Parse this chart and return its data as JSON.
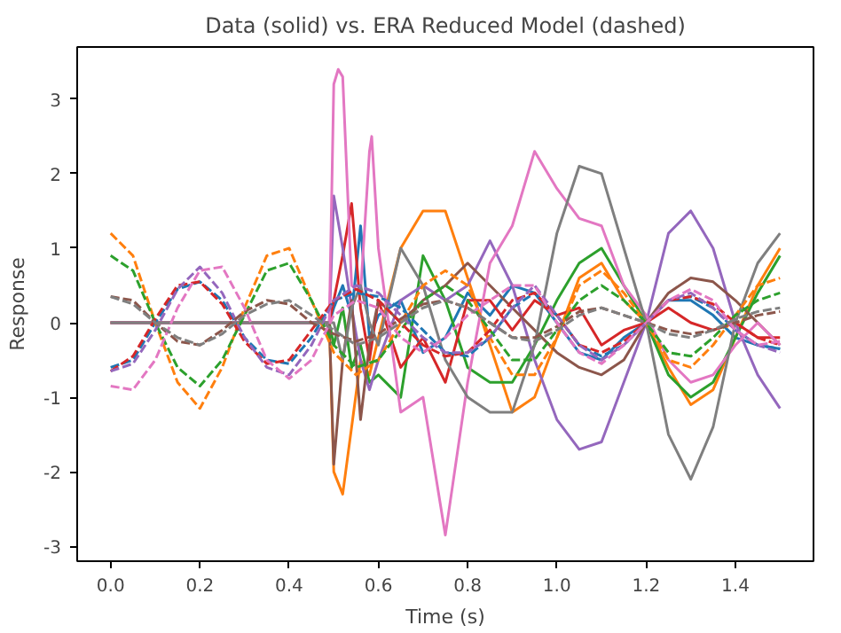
{
  "chart_data": {
    "type": "line",
    "title": "Data (solid) vs. ERA Reduced Model (dashed)",
    "xlabel": "Time (s)",
    "ylabel": "Response",
    "xlim": [
      -0.075,
      1.575
    ],
    "ylim": [
      -3.2,
      3.7
    ],
    "xticks": [
      {
        "value": 0,
        "label": "0.0"
      },
      {
        "value": 0.2,
        "label": "0.2"
      },
      {
        "value": 0.4,
        "label": "0.4"
      },
      {
        "value": 0.6,
        "label": "0.6"
      },
      {
        "value": 0.8,
        "label": "0.8"
      },
      {
        "value": 1.0,
        "label": "1.0"
      },
      {
        "value": 1.2,
        "label": "1.2"
      },
      {
        "value": 1.4,
        "label": "1.4"
      }
    ],
    "yticks": [
      -3,
      -2,
      -1,
      0,
      1,
      2,
      3
    ],
    "series": [
      {
        "color": "#1f77b4",
        "line_style": "solid",
        "x": [
          0,
          0.49,
          0.5,
          0.52,
          0.54,
          0.56,
          0.58,
          0.6,
          0.65,
          0.7,
          0.75,
          0.8,
          0.85,
          0.9,
          0.95,
          1.0,
          1.05,
          1.1,
          1.15,
          1.2,
          1.25,
          1.3,
          1.35,
          1.4,
          1.45,
          1.5
        ],
        "values": [
          0,
          0,
          0.2,
          0.5,
          0.1,
          1.3,
          -0.2,
          0.1,
          0.3,
          -0.4,
          -0.2,
          0.4,
          0.1,
          0.5,
          0.4,
          0.0,
          -0.4,
          -0.5,
          -0.2,
          0.0,
          0.3,
          0.3,
          0.1,
          -0.2,
          -0.3,
          -0.35
        ]
      },
      {
        "color": "#ff7f0e",
        "line_style": "solid",
        "x": [
          0,
          0.49,
          0.5,
          0.52,
          0.54,
          0.56,
          0.58,
          0.6,
          0.65,
          0.7,
          0.75,
          0.8,
          0.85,
          0.9,
          0.95,
          1.0,
          1.05,
          1.1,
          1.15,
          1.2,
          1.25,
          1.3,
          1.35,
          1.4,
          1.45,
          1.5
        ],
        "values": [
          0,
          0,
          -2.0,
          -2.3,
          -1.4,
          -0.5,
          -0.7,
          -0.2,
          1.0,
          1.5,
          1.5,
          0.6,
          -0.3,
          -1.2,
          -1.0,
          -0.2,
          0.6,
          0.8,
          0.3,
          0.0,
          -0.6,
          -1.1,
          -0.9,
          -0.2,
          0.5,
          1.0
        ]
      },
      {
        "color": "#2ca02c",
        "line_style": "solid",
        "x": [
          0,
          0.49,
          0.5,
          0.52,
          0.54,
          0.56,
          0.58,
          0.6,
          0.65,
          0.7,
          0.75,
          0.8,
          0.85,
          0.9,
          0.95,
          1.0,
          1.05,
          1.1,
          1.15,
          1.2,
          1.25,
          1.3,
          1.35,
          1.4,
          1.45,
          1.5
        ],
        "values": [
          0,
          0,
          -0.3,
          0.2,
          -0.6,
          -0.3,
          -0.8,
          -0.7,
          -1.0,
          0.9,
          0.3,
          -0.6,
          -0.8,
          -0.8,
          -0.3,
          0.3,
          0.8,
          1.0,
          0.5,
          0.0,
          -0.7,
          -1.0,
          -0.8,
          -0.2,
          0.4,
          0.9
        ]
      },
      {
        "color": "#d62728",
        "line_style": "solid",
        "x": [
          0,
          0.49,
          0.5,
          0.52,
          0.54,
          0.56,
          0.58,
          0.6,
          0.65,
          0.7,
          0.75,
          0.8,
          0.85,
          0.9,
          0.95,
          1.0,
          1.05,
          1.1,
          1.15,
          1.2,
          1.25,
          1.3,
          1.35,
          1.4,
          1.45,
          1.5
        ],
        "values": [
          0,
          0,
          0.3,
          0.9,
          1.6,
          0.2,
          -0.5,
          0.3,
          -0.6,
          -0.2,
          -0.8,
          0.3,
          0.3,
          -0.1,
          0.3,
          0.1,
          0.2,
          -0.3,
          -0.1,
          0.0,
          0.2,
          0.0,
          -0.1,
          0.0,
          -0.2,
          -0.2
        ]
      },
      {
        "color": "#9467bd",
        "line_style": "solid",
        "x": [
          0,
          0.49,
          0.5,
          0.52,
          0.54,
          0.56,
          0.58,
          0.6,
          0.65,
          0.7,
          0.75,
          0.8,
          0.85,
          0.9,
          0.95,
          1.0,
          1.05,
          1.1,
          1.15,
          1.2,
          1.25,
          1.3,
          1.35,
          1.4,
          1.45,
          1.5
        ],
        "values": [
          0,
          0,
          1.7,
          1.0,
          0.2,
          -0.5,
          -0.9,
          -0.5,
          0.3,
          0.5,
          0.3,
          0.5,
          1.1,
          0.5,
          -0.5,
          -1.3,
          -1.7,
          -1.6,
          -0.8,
          0.0,
          1.2,
          1.5,
          1.0,
          0.0,
          -0.7,
          -1.15
        ]
      },
      {
        "color": "#8c564b",
        "line_style": "solid",
        "x": [
          0,
          0.49,
          0.5,
          0.52,
          0.54,
          0.56,
          0.58,
          0.6,
          0.65,
          0.7,
          0.75,
          0.8,
          0.85,
          0.9,
          0.95,
          1.0,
          1.05,
          1.1,
          1.15,
          1.2,
          1.25,
          1.3,
          1.35,
          1.4,
          1.45,
          1.5
        ],
        "values": [
          0,
          0,
          -1.9,
          -0.5,
          0.3,
          -1.3,
          -0.3,
          0.3,
          0.0,
          0.3,
          0.5,
          0.8,
          0.5,
          0.2,
          -0.1,
          -0.4,
          -0.6,
          -0.7,
          -0.5,
          0.0,
          0.4,
          0.6,
          0.55,
          0.3,
          0.0,
          -0.3
        ]
      },
      {
        "color": "#e377c2",
        "line_style": "solid",
        "x": [
          0,
          0.49,
          0.5,
          0.51,
          0.52,
          0.54,
          0.56,
          0.58,
          0.585,
          0.6,
          0.65,
          0.7,
          0.75,
          0.8,
          0.85,
          0.9,
          0.95,
          1.0,
          1.05,
          1.1,
          1.15,
          1.2,
          1.25,
          1.3,
          1.35,
          1.4,
          1.45,
          1.5
        ],
        "values": [
          0,
          0,
          3.2,
          3.4,
          3.3,
          0.5,
          0.4,
          2.3,
          2.5,
          1.0,
          -1.2,
          -1.0,
          -2.85,
          -0.8,
          0.8,
          1.3,
          2.3,
          1.8,
          1.4,
          1.3,
          0.5,
          0.1,
          -0.5,
          -0.8,
          -0.7,
          -0.3,
          0.0,
          -0.3
        ]
      },
      {
        "color": "#7f7f7f",
        "line_style": "solid",
        "x": [
          0,
          0.49,
          0.5,
          0.52,
          0.54,
          0.56,
          0.58,
          0.6,
          0.65,
          0.7,
          0.75,
          0.8,
          0.85,
          0.9,
          0.95,
          1.0,
          1.05,
          1.1,
          1.15,
          1.2,
          1.25,
          1.3,
          1.35,
          1.4,
          1.45,
          1.5
        ],
        "values": [
          0,
          0,
          0.0,
          -0.5,
          0.2,
          0.5,
          0.0,
          -0.3,
          1.0,
          0.5,
          -0.5,
          -1.0,
          -1.2,
          -1.2,
          -0.3,
          1.2,
          2.1,
          2.0,
          1.0,
          0.0,
          -1.5,
          -2.1,
          -1.4,
          0.0,
          0.8,
          1.2
        ]
      },
      {
        "color": "#1f77b4",
        "line_style": "dashed",
        "values": [
          -0.6,
          -0.5,
          0.0,
          0.45,
          0.55,
          0.3,
          -0.2,
          -0.5,
          -0.55,
          -0.2,
          0.3,
          0.4,
          0.35,
          0.2,
          -0.1,
          -0.4,
          -0.45,
          -0.2,
          0.2,
          0.4,
          0.1,
          -0.3,
          -0.45,
          -0.3,
          0.0,
          0.3,
          0.35,
          0.2,
          -0.1,
          -0.3,
          -0.35
        ]
      },
      {
        "color": "#ff7f0e",
        "line_style": "dashed",
        "values": [
          1.2,
          0.9,
          0.0,
          -0.8,
          -1.15,
          -0.6,
          0.2,
          0.9,
          1.0,
          0.3,
          -0.4,
          -0.7,
          -0.5,
          0.0,
          0.5,
          0.7,
          0.5,
          -0.2,
          -0.7,
          -0.7,
          -0.2,
          0.5,
          0.7,
          0.4,
          0.0,
          -0.5,
          -0.6,
          -0.3,
          0.1,
          0.5,
          0.6
        ]
      },
      {
        "color": "#2ca02c",
        "line_style": "dashed",
        "values": [
          0.9,
          0.7,
          0.0,
          -0.6,
          -0.85,
          -0.5,
          0.1,
          0.7,
          0.8,
          0.3,
          -0.3,
          -0.6,
          -0.5,
          -0.1,
          0.3,
          0.5,
          0.3,
          -0.1,
          -0.5,
          -0.5,
          -0.1,
          0.3,
          0.5,
          0.3,
          0.0,
          -0.4,
          -0.45,
          -0.2,
          0.1,
          0.3,
          0.4
        ]
      },
      {
        "color": "#d62728",
        "line_style": "dashed",
        "values": [
          -0.65,
          -0.45,
          0.05,
          0.5,
          0.55,
          0.25,
          -0.25,
          -0.55,
          -0.5,
          -0.1,
          0.3,
          0.45,
          0.3,
          0.0,
          -0.3,
          -0.45,
          -0.4,
          -0.1,
          0.3,
          0.4,
          0.1,
          -0.3,
          -0.4,
          -0.25,
          0.0,
          0.3,
          0.35,
          0.25,
          0.0,
          -0.2,
          -0.3
        ]
      },
      {
        "color": "#9467bd",
        "line_style": "dashed",
        "values": [
          -0.65,
          -0.55,
          -0.1,
          0.45,
          0.75,
          0.4,
          -0.2,
          -0.6,
          -0.7,
          -0.3,
          0.3,
          0.5,
          0.4,
          0.1,
          -0.2,
          -0.4,
          -0.4,
          -0.2,
          0.2,
          0.5,
          0.1,
          -0.3,
          -0.5,
          -0.3,
          0.0,
          0.3,
          0.4,
          0.2,
          -0.1,
          -0.3,
          -0.4
        ]
      },
      {
        "color": "#8c564b",
        "line_style": "dashed",
        "values": [
          0.35,
          0.3,
          0.0,
          -0.25,
          -0.3,
          -0.1,
          0.15,
          0.3,
          0.25,
          0.0,
          -0.15,
          -0.25,
          -0.15,
          0.05,
          0.25,
          0.3,
          0.2,
          0.0,
          -0.2,
          -0.2,
          -0.05,
          0.15,
          0.2,
          0.1,
          0.0,
          -0.1,
          -0.15,
          -0.1,
          0.0,
          0.1,
          0.15
        ]
      },
      {
        "color": "#e377c2",
        "line_style": "dashed",
        "values": [
          -0.85,
          -0.9,
          -0.5,
          0.2,
          0.7,
          0.75,
          0.2,
          -0.5,
          -0.75,
          -0.5,
          0.1,
          0.3,
          0.2,
          -0.2,
          -0.4,
          -0.2,
          0.1,
          0.3,
          0.5,
          0.5,
          0.0,
          -0.4,
          -0.55,
          -0.3,
          0.0,
          0.3,
          0.45,
          0.3,
          -0.1,
          -0.3,
          -0.25
        ]
      },
      {
        "color": "#7f7f7f",
        "line_style": "dashed",
        "values": [
          0.35,
          0.25,
          0.0,
          -0.2,
          -0.3,
          -0.15,
          0.1,
          0.25,
          0.3,
          0.1,
          -0.1,
          -0.3,
          -0.2,
          0.0,
          0.2,
          0.3,
          0.2,
          0.0,
          -0.2,
          -0.25,
          -0.1,
          0.1,
          0.2,
          0.1,
          0.0,
          -0.15,
          -0.2,
          -0.1,
          0.05,
          0.15,
          0.2
        ]
      }
    ],
    "x": [
      0,
      0.05,
      0.1,
      0.15,
      0.2,
      0.25,
      0.3,
      0.35,
      0.4,
      0.45,
      0.5,
      0.55,
      0.6,
      0.65,
      0.7,
      0.75,
      0.8,
      0.85,
      0.9,
      0.95,
      1.0,
      1.05,
      1.1,
      1.15,
      1.2,
      1.25,
      1.3,
      1.35,
      1.4,
      1.45,
      1.5
    ]
  }
}
